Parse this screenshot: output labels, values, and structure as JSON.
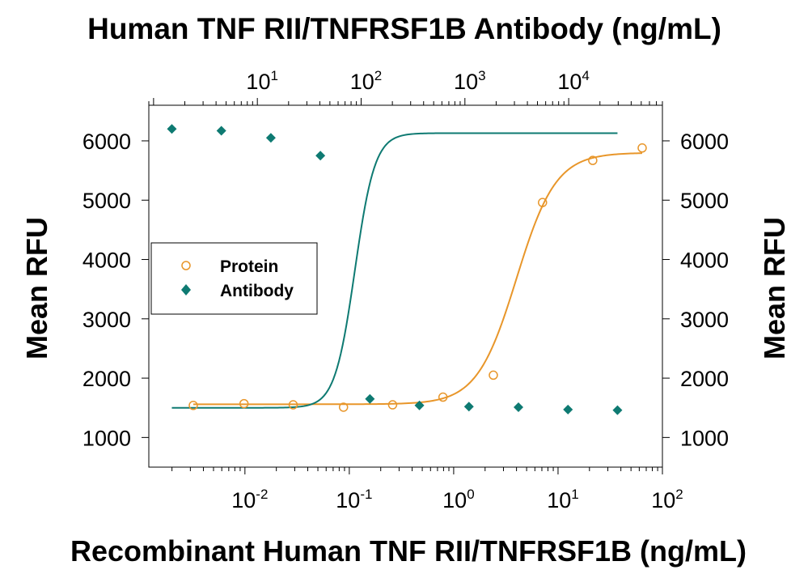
{
  "chart_data": {
    "type": "scatter",
    "title_top": "Human TNF RII/TNFRSF1B Antibody (ng/mL)",
    "xlabel": "Recombinant Human TNF RII/TNFRSF1B (ng/mL)",
    "ylabel_left": "Mean RFU",
    "ylabel_right": "Mean RFU",
    "x_scale": "log",
    "x_top_scale": "log",
    "xlim": [
      0.0012,
      100
    ],
    "x_top_lim": [
      0.9,
      80000
    ],
    "ylim": [
      500,
      6600
    ],
    "y_ticks": [
      {
        "value": 1000,
        "label": "1000"
      },
      {
        "value": 2000,
        "label": "2000"
      },
      {
        "value": 3000,
        "label": "3000"
      },
      {
        "value": 4000,
        "label": "4000"
      },
      {
        "value": 5000,
        "label": "5000"
      },
      {
        "value": 6000,
        "label": "6000"
      }
    ],
    "x_ticks_bottom": [
      {
        "value": 0.01,
        "base": "10",
        "exp": "-2"
      },
      {
        "value": 0.1,
        "base": "10",
        "exp": "-1"
      },
      {
        "value": 1,
        "base": "10",
        "exp": "0"
      },
      {
        "value": 10,
        "base": "10",
        "exp": "1"
      },
      {
        "value": 100,
        "base": "10",
        "exp": "2"
      }
    ],
    "x_ticks_top": [
      {
        "value": 10,
        "base": "10",
        "exp": "1"
      },
      {
        "value": 100,
        "base": "10",
        "exp": "2"
      },
      {
        "value": 1000,
        "base": "10",
        "exp": "3"
      },
      {
        "value": 10000,
        "base": "10",
        "exp": "4"
      }
    ],
    "grid": false,
    "legend_position": "center-left",
    "series": [
      {
        "name": "Protein",
        "axis": "bottom",
        "marker": "open-circle",
        "color": "#E8962A",
        "x": [
          0.0032,
          0.0098,
          0.029,
          0.088,
          0.26,
          0.79,
          2.4,
          7.1,
          21.5,
          64
        ],
        "y": [
          1540,
          1570,
          1550,
          1510,
          1550,
          1680,
          2050,
          4960,
          5670,
          5880
        ],
        "fit": {
          "bottom": 1560,
          "top": 5800,
          "ec50": 4.0,
          "hill": 2.3
        }
      },
      {
        "name": "Antibody",
        "axis": "top",
        "marker": "filled-diamond",
        "color": "#0E7A72",
        "x": [
          1.5,
          4.5,
          13.5,
          40.5,
          121.5,
          364.5,
          1093.5,
          3280.5,
          9841.5,
          29524.5
        ],
        "y": [
          6200,
          6170,
          6050,
          5750,
          1650,
          1540,
          1520,
          1510,
          1470,
          1460
        ],
        "fit": {
          "bottom": 1500,
          "top": 6130,
          "ec50": 87,
          "hill": 4.5
        }
      }
    ]
  }
}
